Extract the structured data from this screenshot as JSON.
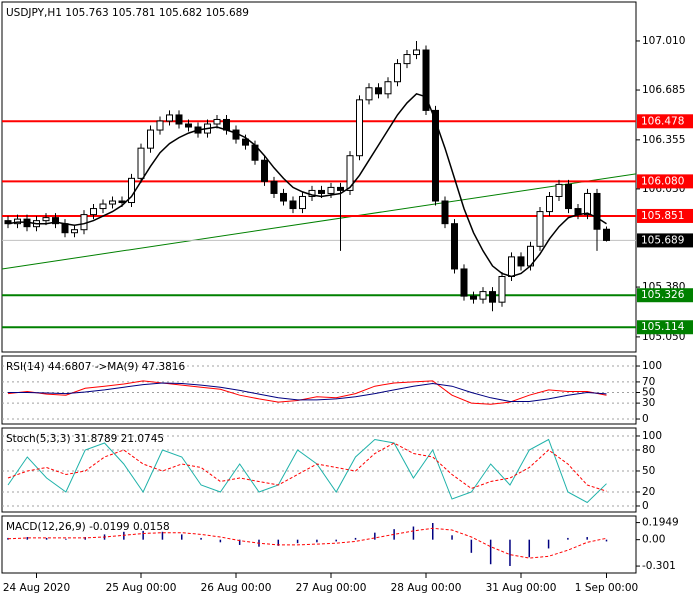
{
  "chart_data": [
    {
      "type": "candlestick",
      "title": "USDJPY,H1  105.763 105.781 105.682 105.689",
      "categories": [
        null,
        null,
        null,
        "24 Aug 2020",
        null,
        null,
        null,
        null,
        null,
        null,
        null,
        null,
        null,
        null,
        "25 Aug 00:00",
        null,
        null,
        null,
        null,
        null,
        null,
        null,
        null,
        null,
        "26 Aug 00:00",
        null,
        null,
        null,
        null,
        null,
        null,
        null,
        null,
        null,
        "27 Aug 00:00",
        null,
        null,
        null,
        null,
        null,
        null,
        null,
        null,
        null,
        "28 Aug 00:00",
        null,
        null,
        null,
        null,
        null,
        null,
        null,
        null,
        null,
        "31 Aug 00:00",
        null,
        null,
        null,
        null,
        null,
        null,
        null,
        null,
        "1 Sep 00:00"
      ],
      "open": [
        105.82,
        105.8,
        105.83,
        105.78,
        105.82,
        105.84,
        105.8,
        105.74,
        105.76,
        105.86,
        105.9,
        105.93,
        105.95,
        105.94,
        106.1,
        106.3,
        106.42,
        106.48,
        106.52,
        106.46,
        106.44,
        106.4,
        106.46,
        106.49,
        106.42,
        106.36,
        106.32,
        106.22,
        106.08,
        106.0,
        105.95,
        105.9,
        105.98,
        106.02,
        106.0,
        106.04,
        106.02,
        106.25,
        106.62,
        106.7,
        106.66,
        106.74,
        106.86,
        106.92,
        106.95,
        106.55,
        105.95,
        105.8,
        105.5,
        105.32,
        105.3,
        105.35,
        105.28,
        105.45,
        105.58,
        105.52,
        105.65,
        105.88,
        105.98,
        106.06,
        105.9,
        105.86,
        106.0,
        105.763
      ],
      "high": [
        105.85,
        105.86,
        105.86,
        105.85,
        105.87,
        105.87,
        105.83,
        105.79,
        105.89,
        105.93,
        105.96,
        105.98,
        105.98,
        106.13,
        106.33,
        106.45,
        106.51,
        106.55,
        106.55,
        106.49,
        106.47,
        106.49,
        106.52,
        106.52,
        106.45,
        106.39,
        106.35,
        106.25,
        106.11,
        106.03,
        105.98,
        106.01,
        106.05,
        106.05,
        106.07,
        106.07,
        106.28,
        106.65,
        106.73,
        106.73,
        106.77,
        106.89,
        106.95,
        107.01,
        106.98,
        106.58,
        105.98,
        105.83,
        105.53,
        105.35,
        105.38,
        105.38,
        105.48,
        105.61,
        105.61,
        105.68,
        105.91,
        106.01,
        106.09,
        106.09,
        105.93,
        106.03,
        106.03,
        105.781
      ],
      "low": [
        105.77,
        105.77,
        105.75,
        105.75,
        105.79,
        105.77,
        105.71,
        105.71,
        105.73,
        105.83,
        105.87,
        105.9,
        105.91,
        105.91,
        106.07,
        106.27,
        106.39,
        106.45,
        106.43,
        106.41,
        106.37,
        106.37,
        106.43,
        106.39,
        106.33,
        106.29,
        106.19,
        106.05,
        105.97,
        105.92,
        105.87,
        105.87,
        105.95,
        105.97,
        105.97,
        105.62,
        105.99,
        106.22,
        106.59,
        106.63,
        106.63,
        106.71,
        106.83,
        106.89,
        106.52,
        105.92,
        105.77,
        105.47,
        105.29,
        105.27,
        105.27,
        105.22,
        105.25,
        105.42,
        105.49,
        105.49,
        105.62,
        105.85,
        105.95,
        105.87,
        105.83,
        105.83,
        105.62,
        105.682
      ],
      "close": [
        105.8,
        105.83,
        105.78,
        105.82,
        105.84,
        105.8,
        105.74,
        105.76,
        105.86,
        105.9,
        105.93,
        105.95,
        105.94,
        106.1,
        106.3,
        106.42,
        106.48,
        106.52,
        106.46,
        106.44,
        106.4,
        106.46,
        106.49,
        106.42,
        106.36,
        106.32,
        106.22,
        106.08,
        106.0,
        105.95,
        105.9,
        105.98,
        106.02,
        106.0,
        106.04,
        106.02,
        106.25,
        106.62,
        106.7,
        106.66,
        106.74,
        106.86,
        106.92,
        106.95,
        106.55,
        105.95,
        105.8,
        105.5,
        105.32,
        105.3,
        105.35,
        105.28,
        105.45,
        105.58,
        105.52,
        105.65,
        105.88,
        105.98,
        106.06,
        105.9,
        105.86,
        106.0,
        105.763,
        105.689
      ],
      "up_color": "#ffffff",
      "down_color": "#000000",
      "edge_color": "#000000",
      "ma": [
        105.8,
        105.81,
        105.81,
        105.8,
        105.8,
        105.81,
        105.8,
        105.79,
        105.8,
        105.82,
        105.85,
        105.88,
        105.92,
        105.98,
        106.08,
        106.18,
        106.27,
        106.33,
        106.37,
        106.4,
        106.42,
        106.43,
        106.44,
        106.42,
        106.4,
        106.37,
        106.32,
        106.25,
        106.17,
        106.1,
        106.04,
        106.01,
        105.99,
        105.98,
        105.99,
        106.0,
        106.04,
        106.12,
        106.22,
        106.32,
        106.42,
        106.52,
        106.6,
        106.66,
        106.64,
        106.48,
        106.3,
        106.1,
        105.9,
        105.74,
        105.62,
        105.52,
        105.47,
        105.45,
        105.47,
        105.52,
        105.6,
        105.7,
        105.78,
        105.84,
        105.86,
        105.87,
        105.84,
        105.8
      ],
      "ma_color": "#000000",
      "trendline": [
        105.5,
        106.13
      ],
      "trendline_color": "#008000",
      "levels": [
        {
          "value": 106.478,
          "label": "106.478",
          "color": "#ff0000"
        },
        {
          "value": 106.08,
          "label": "106.080",
          "color": "#ff0000"
        },
        {
          "value": 105.851,
          "label": "105.851",
          "color": "#ff0000"
        },
        {
          "value": 105.326,
          "label": "105.326",
          "color": "#008000"
        },
        {
          "value": 105.114,
          "label": "105.114",
          "color": "#008000"
        }
      ],
      "current": {
        "value": 105.689,
        "label": "105.689",
        "color": "#000000"
      },
      "ylim": [
        104.95,
        107.268
      ],
      "yticks": [
        {
          "value": 107.01,
          "label": "107.010"
        },
        {
          "value": 106.685,
          "label": "106.685"
        },
        {
          "value": 106.355,
          "label": "106.355"
        },
        {
          "value": 106.03,
          "label": "106.030"
        },
        {
          "value": 105.38,
          "label": "105.380"
        },
        {
          "value": 105.05,
          "label": "105.050"
        }
      ],
      "grid": false
    },
    {
      "type": "line",
      "title": "RSI(14) 44.6807  ->MA(9) 47.3816",
      "series": [
        {
          "color": "#ff0000",
          "values": [
            48,
            52,
            47,
            45,
            58,
            62,
            66,
            72,
            68,
            64,
            60,
            56,
            45,
            38,
            32,
            35,
            42,
            40,
            48,
            62,
            68,
            70,
            72,
            45,
            30,
            28,
            32,
            45,
            55,
            52,
            52,
            44.6807
          ]
        },
        {
          "color": "#000080",
          "values": [
            50,
            50,
            49,
            48,
            51,
            55,
            60,
            65,
            68,
            67,
            64,
            60,
            54,
            47,
            40,
            36,
            36,
            38,
            42,
            48,
            55,
            62,
            67,
            62,
            50,
            40,
            33,
            33,
            38,
            45,
            50,
            47.3816
          ]
        }
      ],
      "ylim": [
        -9.4,
        118.9
      ],
      "yticks": [
        100,
        70,
        50,
        30,
        0
      ],
      "grid": true
    },
    {
      "type": "line",
      "title": "Stoch(5,3,3) 31.8789 21.0745",
      "series": [
        {
          "color": "#20b2aa",
          "values": [
            30,
            70,
            40,
            20,
            80,
            90,
            60,
            20,
            80,
            70,
            30,
            20,
            60,
            20,
            30,
            80,
            60,
            20,
            70,
            95,
            90,
            40,
            80,
            10,
            20,
            60,
            30,
            80,
            95,
            20,
            5,
            31.8789
          ]
        },
        {
          "color": "#ff0000",
          "dashed": true,
          "values": [
            40,
            50,
            55,
            45,
            50,
            70,
            80,
            60,
            50,
            60,
            55,
            35,
            40,
            35,
            30,
            45,
            60,
            55,
            50,
            75,
            90,
            75,
            70,
            45,
            25,
            35,
            40,
            55,
            80,
            60,
            30,
            21.0745
          ]
        }
      ],
      "ylim": [
        -8.6,
        111.4
      ],
      "yticks": [
        100,
        80,
        50,
        20,
        0
      ],
      "grid": true
    },
    {
      "type": "macd",
      "title": "MACD(12,26,9) -0.0199 0.0158",
      "series": [
        {
          "kind": "bar",
          "color": "#000080",
          "values": [
            0.02,
            0.03,
            0.02,
            0.01,
            0.03,
            0.06,
            0.09,
            0.1,
            0.09,
            0.06,
            0.02,
            -0.03,
            -0.06,
            -0.08,
            -0.07,
            -0.04,
            -0.03,
            -0.02,
            0.02,
            0.08,
            0.12,
            0.15,
            0.19,
            0.05,
            -0.15,
            -0.28,
            -0.3,
            -0.2,
            -0.1,
            0.02,
            0.03,
            -0.0199
          ]
        },
        {
          "kind": "line",
          "color": "#ff0000",
          "dashed": true,
          "values": [
            0.01,
            0.02,
            0.02,
            0.02,
            0.02,
            0.03,
            0.05,
            0.07,
            0.08,
            0.08,
            0.06,
            0.03,
            -0.01,
            -0.04,
            -0.06,
            -0.06,
            -0.05,
            -0.04,
            -0.02,
            0.02,
            0.06,
            0.1,
            0.13,
            0.11,
            0.03,
            -0.08,
            -0.17,
            -0.21,
            -0.19,
            -0.12,
            -0.03,
            0.0158
          ]
        }
      ],
      "ylim": [
        -0.38,
        0.27
      ],
      "yticks": [
        0.1949,
        {
          "value": 0,
          "label": "0.00"
        },
        -0.301
      ],
      "grid": false
    }
  ]
}
